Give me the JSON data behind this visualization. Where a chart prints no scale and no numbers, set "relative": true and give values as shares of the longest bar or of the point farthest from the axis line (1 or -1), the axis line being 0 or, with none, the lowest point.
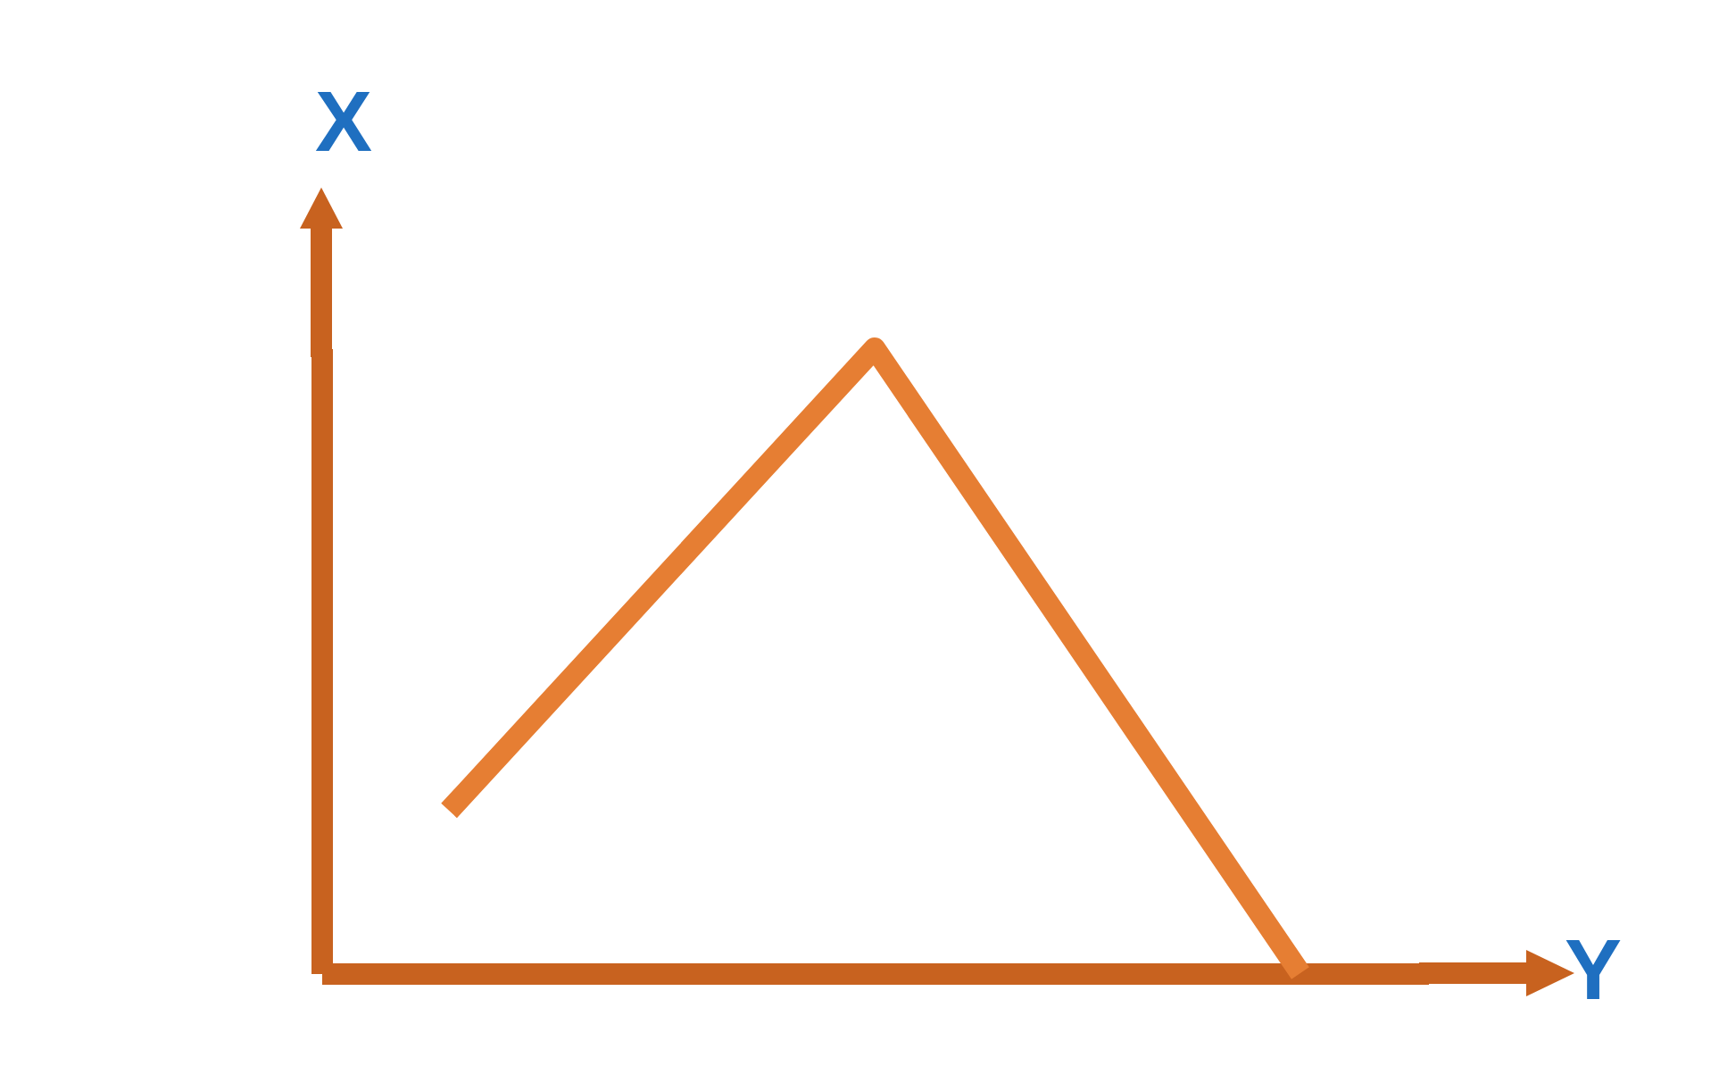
{
  "chart_data": {
    "type": "line",
    "xlabel": "Y",
    "ylabel": "X",
    "categories": [
      null,
      null,
      null
    ],
    "relative": true,
    "series": [
      {
        "color": "#e67e33",
        "values": [
          0.26,
          1,
          0
        ]
      }
    ]
  }
}
